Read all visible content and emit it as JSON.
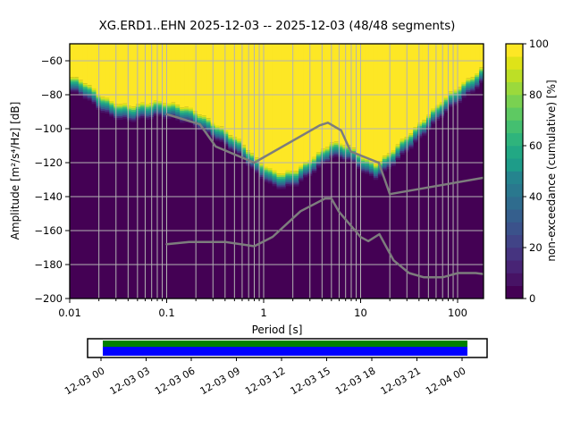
{
  "title": "XG.ERD1..EHN   2025-12-03 -- 2025-12-03  (48/48 segments)",
  "axes": {
    "xlabel": "Period [s]",
    "ylabel": "Amplitude [m²/s⁴/Hz] [dB]",
    "x_tick_labels": [
      "0.01",
      "0.1",
      "1",
      "10",
      "100"
    ],
    "y_tick_labels": [
      "−60",
      "−80",
      "−100",
      "−120",
      "−140",
      "−160",
      "−180",
      "−200"
    ]
  },
  "colorbar": {
    "label": "non-exceedance (cumulative) [%]",
    "tick_labels": [
      "0",
      "20",
      "40",
      "60",
      "80",
      "100"
    ],
    "tick_values": [
      0,
      20,
      40,
      60,
      80,
      100
    ],
    "colormap_name": "viridis",
    "viridis_stops": [
      "#440154",
      "#471365",
      "#482475",
      "#463480",
      "#414487",
      "#3b528b",
      "#355f8d",
      "#2f6c8e",
      "#2a788e",
      "#25848e",
      "#21918c",
      "#1e9c89",
      "#22a884",
      "#2fb47c",
      "#44bf70",
      "#5ec962",
      "#7ad151",
      "#9bd93c",
      "#bddf26",
      "#dfe318",
      "#fde725"
    ]
  },
  "coverage_bar": {
    "tick_labels": [
      "12-03 00",
      "12-03 03",
      "12-03 06",
      "12-03 09",
      "12-03 12",
      "12-03 15",
      "12-03 18",
      "12-03 21",
      "12-04 00"
    ],
    "green_color": "#008000",
    "blue_color": "#0000ff"
  },
  "chart_data": {
    "type": "heatmap",
    "subtype": "ppsd-cumulative",
    "station": "XG.ERD1..EHN",
    "date_start": "2025-12-03",
    "date_end": "2025-12-03",
    "segments_used": 48,
    "segments_total": 48,
    "x_axis": {
      "label": "Period [s]",
      "scale": "log",
      "range_s": [
        0.01,
        185
      ],
      "tick_values": [
        0.01,
        0.1,
        1,
        10,
        100
      ],
      "grid": true
    },
    "y_axis": {
      "label": "Amplitude [m²/s⁴/Hz] [dB]",
      "range_db": [
        -200,
        -50
      ],
      "tick_values": [
        -60,
        -80,
        -100,
        -120,
        -140,
        -160,
        -180,
        -200
      ],
      "grid": true
    },
    "color_axis": {
      "label": "non-exceedance (cumulative) [%]",
      "range_pct": [
        0,
        100
      ],
      "colormap": "viridis"
    },
    "background_color": "#440154",
    "yellow_color": "#fde725",
    "grid_color": "#b3b3b3",
    "cumulative_boundary_db_vs_period_s": [
      [
        0.01,
        -73.5
      ],
      [
        0.014,
        -77.0
      ],
      [
        0.02,
        -84.0
      ],
      [
        0.028,
        -88.5
      ],
      [
        0.042,
        -91.5
      ],
      [
        0.06,
        -90.0
      ],
      [
        0.08,
        -88.0
      ],
      [
        0.1,
        -88.5
      ],
      [
        0.13,
        -90.5
      ],
      [
        0.2,
        -94.5
      ],
      [
        0.3,
        -100.0
      ],
      [
        0.43,
        -106.5
      ],
      [
        0.6,
        -113.5
      ],
      [
        0.85,
        -122.0
      ],
      [
        1.2,
        -128.5
      ],
      [
        1.6,
        -131.0
      ],
      [
        2.2,
        -129.0
      ],
      [
        3.2,
        -121.0
      ],
      [
        5.0,
        -112.5
      ],
      [
        7.5,
        -114.5
      ],
      [
        11.0,
        -121.5
      ],
      [
        14.5,
        -124.5
      ],
      [
        20.0,
        -119.0
      ],
      [
        30.0,
        -109.0
      ],
      [
        50.0,
        -95.5
      ],
      [
        70.0,
        -88.0
      ],
      [
        100.0,
        -80.5
      ],
      [
        140.0,
        -73.5
      ],
      [
        185.0,
        -67.5
      ]
    ],
    "transition_halfwidth_db": 4.5,
    "noise_models": {
      "color": "#7d7d7d",
      "nhnm_db_vs_period_s": [
        [
          0.1,
          -91.5
        ],
        [
          0.22,
          -97.4
        ],
        [
          0.32,
          -110.5
        ],
        [
          0.8,
          -120.0
        ],
        [
          3.8,
          -98.0
        ],
        [
          4.6,
          -96.5
        ],
        [
          6.3,
          -101.0
        ],
        [
          7.9,
          -113.5
        ],
        [
          15.4,
          -120.0
        ],
        [
          20.0,
          -138.5
        ],
        [
          185.0,
          -128.9
        ]
      ],
      "nlnm_db_vs_period_s": [
        [
          0.1,
          -168.0
        ],
        [
          0.17,
          -166.7
        ],
        [
          0.4,
          -166.7
        ],
        [
          0.8,
          -169.2
        ],
        [
          1.24,
          -163.7
        ],
        [
          2.4,
          -148.6
        ],
        [
          4.3,
          -141.1
        ],
        [
          5.0,
          -141.1
        ],
        [
          6.0,
          -149.0
        ],
        [
          10.0,
          -163.8
        ],
        [
          12.0,
          -166.2
        ],
        [
          15.6,
          -162.1
        ],
        [
          21.9,
          -177.5
        ],
        [
          31.6,
          -185.0
        ],
        [
          45.0,
          -187.5
        ],
        [
          70.0,
          -187.5
        ],
        [
          101.0,
          -185.0
        ],
        [
          154.0,
          -185.0
        ],
        [
          185.0,
          -185.6
        ]
      ]
    }
  }
}
